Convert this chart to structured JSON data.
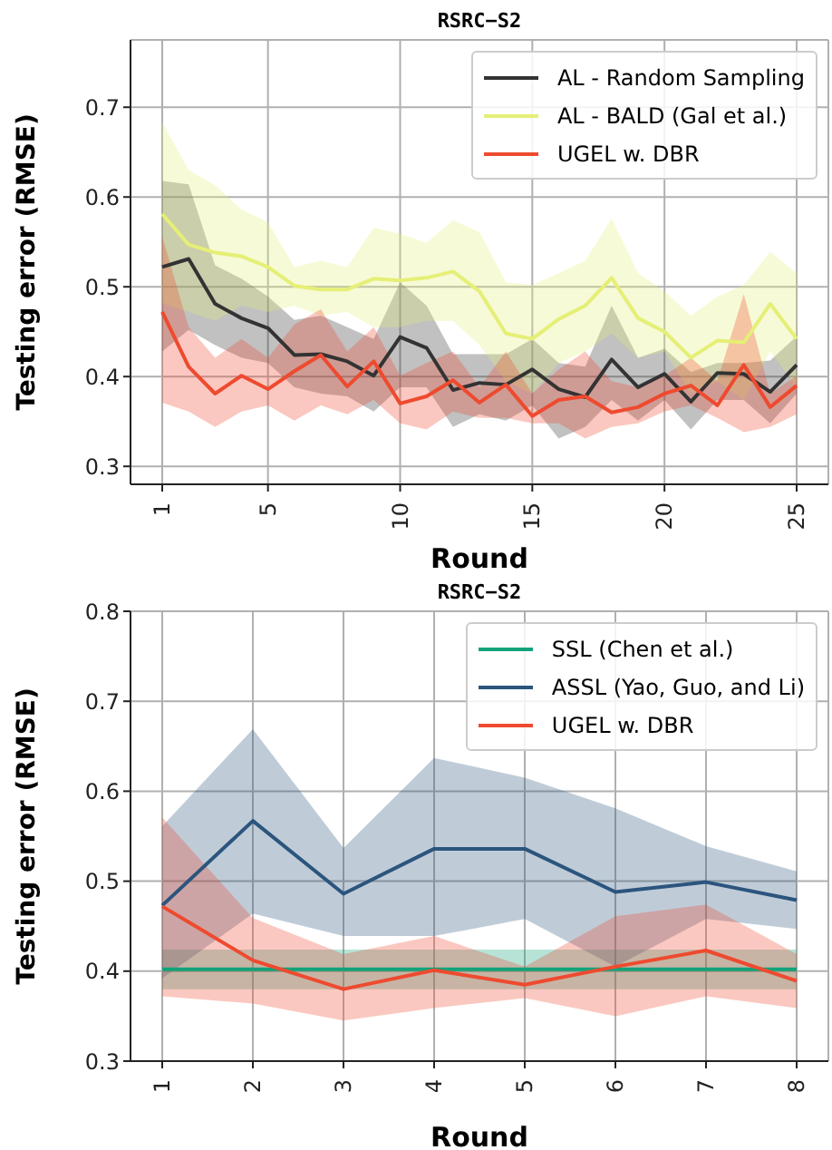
{
  "chart_data": [
    {
      "type": "line",
      "title": "RSRC−S2",
      "xlabel": "Round",
      "ylabel": "Testing error (RMSE)",
      "x": [
        1,
        2,
        3,
        4,
        5,
        6,
        7,
        8,
        9,
        10,
        11,
        12,
        13,
        14,
        15,
        16,
        17,
        18,
        19,
        20,
        21,
        22,
        23,
        24,
        25
      ],
      "xlim": [
        -0.2,
        26.2
      ],
      "ylim": [
        0.28,
        0.775
      ],
      "xticks": [
        1,
        5,
        10,
        15,
        20,
        25
      ],
      "yticks": [
        0.3,
        0.4,
        0.5,
        0.6,
        0.7
      ],
      "grid": true,
      "legend": "top right",
      "series": [
        {
          "name": "AL - Random Sampling",
          "color": "#333333",
          "values": [
            0.522,
            0.531,
            0.481,
            0.465,
            0.454,
            0.424,
            0.425,
            0.417,
            0.401,
            0.444,
            0.432,
            0.385,
            0.393,
            0.391,
            0.408,
            0.386,
            0.377,
            0.419,
            0.388,
            0.403,
            0.372,
            0.404,
            0.403,
            0.383,
            0.413
          ],
          "lower": [
            0.428,
            0.452,
            0.435,
            0.421,
            0.415,
            0.388,
            0.381,
            0.378,
            0.361,
            0.388,
            0.388,
            0.344,
            0.358,
            0.351,
            0.368,
            0.331,
            0.344,
            0.374,
            0.351,
            0.374,
            0.341,
            0.374,
            0.374,
            0.348,
            0.381
          ],
          "upper": [
            0.618,
            0.614,
            0.524,
            0.509,
            0.489,
            0.463,
            0.468,
            0.455,
            0.442,
            0.505,
            0.479,
            0.425,
            0.425,
            0.425,
            0.442,
            0.415,
            0.411,
            0.479,
            0.421,
            0.431,
            0.405,
            0.415,
            0.415,
            0.418,
            0.445
          ]
        },
        {
          "name": "AL - BALD (Gal et al.)",
          "color": "#e5ef76",
          "values": [
            0.581,
            0.547,
            0.538,
            0.534,
            0.522,
            0.501,
            0.497,
            0.497,
            0.509,
            0.507,
            0.51,
            0.517,
            0.495,
            0.448,
            0.442,
            0.464,
            0.479,
            0.51,
            0.465,
            0.45,
            0.421,
            0.44,
            0.438,
            0.481,
            0.442
          ],
          "lower": [
            0.482,
            0.472,
            0.462,
            0.479,
            0.472,
            0.479,
            0.468,
            0.472,
            0.455,
            0.455,
            0.462,
            0.462,
            0.435,
            0.395,
            0.381,
            0.415,
            0.428,
            0.448,
            0.421,
            0.428,
            0.381,
            0.395,
            0.374,
            0.428,
            0.388
          ],
          "upper": [
            0.683,
            0.63,
            0.613,
            0.586,
            0.572,
            0.522,
            0.529,
            0.522,
            0.566,
            0.559,
            0.549,
            0.574,
            0.561,
            0.505,
            0.502,
            0.515,
            0.529,
            0.576,
            0.515,
            0.495,
            0.468,
            0.489,
            0.502,
            0.539,
            0.515
          ]
        },
        {
          "name": "UGEL w. DBR",
          "color": "#ee4a2f",
          "values": [
            0.472,
            0.411,
            0.381,
            0.401,
            0.386,
            0.406,
            0.424,
            0.389,
            0.417,
            0.37,
            0.378,
            0.396,
            0.371,
            0.391,
            0.356,
            0.374,
            0.378,
            0.36,
            0.366,
            0.381,
            0.39,
            0.368,
            0.413,
            0.366,
            0.39
          ],
          "lower": [
            0.371,
            0.361,
            0.344,
            0.361,
            0.368,
            0.351,
            0.368,
            0.358,
            0.374,
            0.348,
            0.341,
            0.361,
            0.354,
            0.354,
            0.348,
            0.348,
            0.331,
            0.344,
            0.348,
            0.361,
            0.368,
            0.354,
            0.338,
            0.344,
            0.358
          ],
          "upper": [
            0.556,
            0.455,
            0.421,
            0.442,
            0.421,
            0.458,
            0.475,
            0.428,
            0.455,
            0.401,
            0.415,
            0.428,
            0.388,
            0.428,
            0.381,
            0.408,
            0.428,
            0.395,
            0.388,
            0.401,
            0.421,
            0.395,
            0.492,
            0.381,
            0.401
          ]
        }
      ]
    },
    {
      "type": "line",
      "title": "RSRC−S2",
      "xlabel": "Round",
      "ylabel": "Testing error (RMSE)",
      "x": [
        1,
        2,
        3,
        4,
        5,
        6,
        7,
        8
      ],
      "xlim": [
        0.65,
        8.35
      ],
      "ylim": [
        0.3,
        0.8
      ],
      "xticks": [
        1,
        2,
        3,
        4,
        5,
        6,
        7,
        8
      ],
      "yticks": [
        0.3,
        0.4,
        0.5,
        0.6,
        0.7,
        0.8
      ],
      "grid": true,
      "legend": "top right",
      "series": [
        {
          "name": "SSL (Chen et al.)",
          "color": "#12a37a",
          "values": [
            0.402,
            0.402,
            0.402,
            0.402,
            0.402,
            0.402,
            0.402,
            0.402
          ],
          "lower": [
            0.38,
            0.38,
            0.38,
            0.38,
            0.38,
            0.38,
            0.38,
            0.38
          ],
          "upper": [
            0.424,
            0.424,
            0.424,
            0.424,
            0.424,
            0.424,
            0.424,
            0.424
          ]
        },
        {
          "name": "ASSL (Yao, Guo, and Li)",
          "color": "#2b557d",
          "values": [
            0.473,
            0.567,
            0.486,
            0.536,
            0.536,
            0.488,
            0.499,
            0.479
          ],
          "lower": [
            0.392,
            0.464,
            0.439,
            0.439,
            0.458,
            0.405,
            0.458,
            0.447
          ],
          "upper": [
            0.561,
            0.669,
            0.537,
            0.637,
            0.615,
            0.581,
            0.539,
            0.511
          ]
        },
        {
          "name": "UGEL w. DBR",
          "color": "#ee4a2f",
          "values": [
            0.472,
            0.412,
            0.38,
            0.401,
            0.385,
            0.405,
            0.423,
            0.389
          ],
          "lower": [
            0.372,
            0.364,
            0.345,
            0.359,
            0.37,
            0.35,
            0.372,
            0.359
          ],
          "upper": [
            0.571,
            0.459,
            0.419,
            0.439,
            0.405,
            0.461,
            0.474,
            0.419
          ]
        }
      ]
    }
  ]
}
